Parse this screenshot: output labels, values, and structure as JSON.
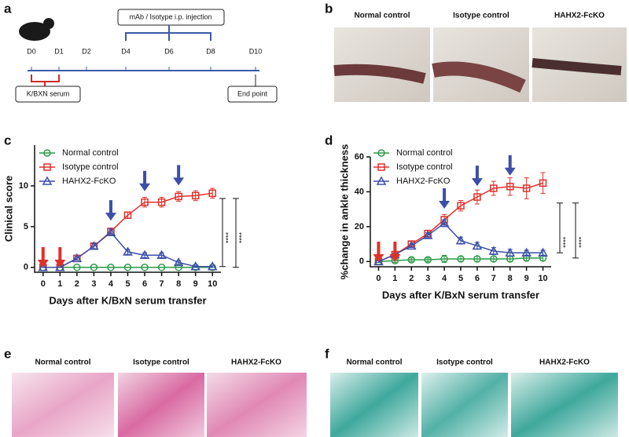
{
  "panel_labels": [
    "a",
    "b",
    "c",
    "d",
    "e",
    "f"
  ],
  "timeline": {
    "days": [
      "D0",
      "D1",
      "D2",
      "D4",
      "D6",
      "D8",
      "D10"
    ],
    "injection": "mAb / Isotype i.p. injection",
    "serum": "K/BXN serum",
    "end": "End point"
  },
  "photos": [
    "Normal control",
    "Isotype control",
    "HAHX2-FcKO"
  ],
  "histology_he": [
    "Normal control",
    "Isotype control",
    "HAHX2-FcKO"
  ],
  "histology_safranin": [
    "Normal control",
    "Isotype control",
    "HAHX2-FcKO"
  ],
  "chart_data": [
    {
      "type": "line",
      "ylabel": "Clinical score",
      "xlabel": "Days after K/BxN serum transfer",
      "x": [
        0,
        1,
        2,
        3,
        4,
        5,
        6,
        7,
        8,
        9,
        10
      ],
      "xlim": [
        -0.5,
        10.5
      ],
      "xticks": [
        0,
        1,
        2,
        3,
        4,
        5,
        6,
        7,
        8,
        9,
        10
      ],
      "ylim": [
        -0.6,
        15
      ],
      "yticks": [
        0,
        5,
        10
      ],
      "series": [
        {
          "name": "Normal control",
          "color": "#2e9a4a",
          "marker": "circle",
          "values": [
            0,
            0,
            0,
            0,
            0,
            0,
            0,
            0,
            0,
            0,
            0
          ],
          "errors": [
            0,
            0,
            0,
            0,
            0,
            0,
            0,
            0,
            0,
            0,
            0
          ]
        },
        {
          "name": "Isotype control",
          "color": "#e0302a",
          "marker": "square",
          "values": [
            0,
            0,
            1.1,
            2.6,
            4.4,
            6.4,
            8.0,
            8.0,
            8.7,
            8.8,
            9.1
          ],
          "errors": [
            0,
            0,
            0.2,
            0.4,
            0.4,
            0.4,
            0.6,
            0.6,
            0.6,
            0.6,
            0.6
          ]
        },
        {
          "name": "HAHX2-FcKO",
          "color": "#3b4fa8",
          "marker": "triangle",
          "values": [
            0,
            0,
            1.1,
            2.6,
            4.3,
            1.9,
            1.5,
            1.5,
            0.6,
            0.1,
            0.1
          ],
          "errors": [
            0,
            0,
            0.2,
            0.3,
            0.4,
            0.3,
            0.3,
            0.3,
            0.2,
            0.1,
            0.1
          ]
        }
      ],
      "arrows": [
        {
          "x": 0,
          "color": "#e0302a"
        },
        {
          "x": 1,
          "color": "#e0302a"
        },
        {
          "x": 4,
          "color": "#3b4fa8"
        },
        {
          "x": 6,
          "color": "#3b4fa8"
        },
        {
          "x": 8,
          "color": "#3b4fa8"
        }
      ],
      "significance": [
        "****",
        "****"
      ]
    },
    {
      "type": "line",
      "ylabel": "%change in ankle thickness",
      "xlabel": "Days after K/BxN serum transfer",
      "x": [
        0,
        1,
        2,
        3,
        4,
        5,
        6,
        7,
        8,
        9,
        10
      ],
      "xlim": [
        -0.5,
        10.5
      ],
      "xticks": [
        0,
        1,
        2,
        3,
        4,
        5,
        6,
        7,
        8,
        9,
        10
      ],
      "ylim": [
        -3,
        60
      ],
      "yticks": [
        0,
        20,
        40,
        60
      ],
      "series": [
        {
          "name": "Normal control",
          "color": "#2e9a4a",
          "marker": "circle",
          "values": [
            0,
            0.5,
            1,
            1,
            1.5,
            1.5,
            1.5,
            1.5,
            1.5,
            2,
            2
          ],
          "errors": [
            0.5,
            1,
            1,
            1,
            2,
            1.5,
            1.5,
            1.5,
            1.5,
            1.5,
            1.5
          ]
        },
        {
          "name": "Isotype control",
          "color": "#e0302a",
          "marker": "square",
          "values": [
            0,
            4,
            10,
            16,
            24,
            32,
            37,
            42,
            43,
            42,
            45
          ],
          "errors": [
            0.5,
            1,
            1.5,
            2,
            3,
            3,
            4,
            4,
            5,
            6,
            6
          ]
        },
        {
          "name": "HAHX2-FcKO",
          "color": "#3b4fa8",
          "marker": "triangle",
          "values": [
            0,
            4,
            9,
            15,
            22,
            12,
            9,
            6,
            5,
            5,
            5
          ],
          "errors": [
            0.5,
            1,
            1,
            1.5,
            2,
            2,
            2,
            2,
            2,
            1.5,
            1.5
          ]
        }
      ],
      "arrows": [
        {
          "x": 0,
          "color": "#e0302a"
        },
        {
          "x": 1,
          "color": "#e0302a"
        },
        {
          "x": 4,
          "color": "#3b4fa8"
        },
        {
          "x": 6,
          "color": "#3b4fa8"
        },
        {
          "x": 8,
          "color": "#3b4fa8"
        }
      ],
      "significance": [
        "****",
        "****"
      ]
    }
  ]
}
